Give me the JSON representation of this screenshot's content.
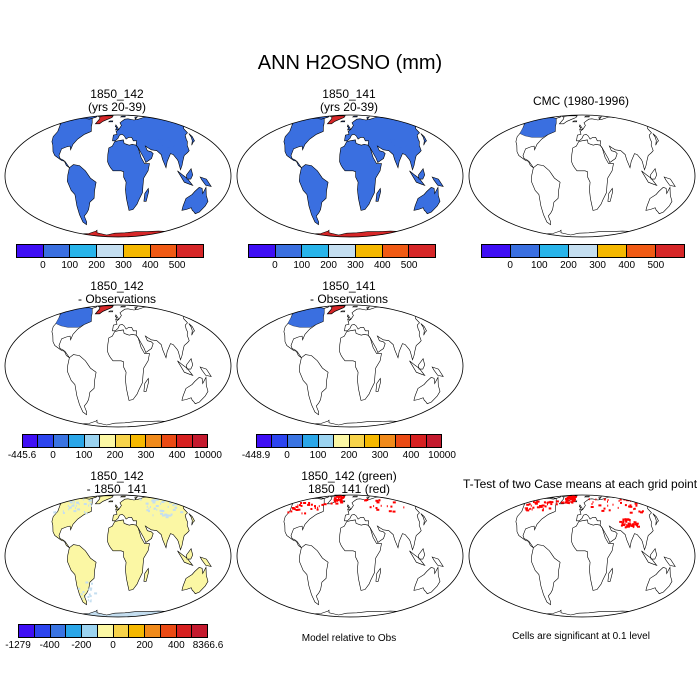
{
  "title": "ANN H2OSNO (mm)",
  "panels": [
    {
      "id": "p1",
      "title": [
        "1850_142",
        "(yrs 20-39)"
      ],
      "style": "full"
    },
    {
      "id": "p2",
      "title": [
        "1850_141",
        "(yrs 20-39)"
      ],
      "style": "full"
    },
    {
      "id": "p3",
      "title": [
        "CMC (1980-1996)"
      ],
      "style": "obs"
    },
    {
      "id": "p4",
      "title": [
        "1850_142",
        "- Observations"
      ],
      "style": "obs"
    },
    {
      "id": "p5",
      "title": [
        "1850_141",
        "- Observations"
      ],
      "style": "obs"
    },
    {
      "id": "p6",
      "title": [
        "1850_142",
        "- 1850_141"
      ],
      "style": "diff"
    },
    {
      "id": "p7",
      "title": [
        "1850_142 (green)",
        "1850_141 (red)"
      ],
      "style": "dots"
    },
    {
      "id": "p8",
      "title": [
        "T-Test of two Case means at each grid point"
      ],
      "style": "dots"
    }
  ],
  "colorbars": {
    "abs": {
      "colors": [
        "#3f0ff5",
        "#3a6fe0",
        "#28b4ea",
        "#c4def0",
        "#f5b800",
        "#f05a14",
        "#d62728"
      ],
      "ticks": [
        "0",
        "100",
        "200",
        "300",
        "400",
        "500"
      ]
    },
    "diff1": {
      "colors": [
        "#3f0ff5",
        "#2c44ef",
        "#3a74e2",
        "#2aa6e8",
        "#9bd3f0",
        "#fbf7a4",
        "#f7d34a",
        "#f5b800",
        "#f08a1a",
        "#ea4a14",
        "#d62020",
        "#c41a2e"
      ],
      "ticks": [
        "-445.6",
        "0",
        "100",
        "200",
        "300",
        "400",
        "10000"
      ]
    },
    "diff2": {
      "colors": [
        "#3f0ff5",
        "#2c44ef",
        "#3a74e2",
        "#2aa6e8",
        "#9bd3f0",
        "#fbf7a4",
        "#f7d34a",
        "#f5b800",
        "#f08a1a",
        "#ea4a14",
        "#d62020",
        "#c41a2e"
      ],
      "ticks": [
        "-448.9",
        "0",
        "100",
        "200",
        "300",
        "400",
        "10000"
      ]
    },
    "diff3": {
      "colors": [
        "#3f0ff5",
        "#2c44ef",
        "#3a74e2",
        "#2aa6e8",
        "#9bd3f0",
        "#fbf7a4",
        "#f7d34a",
        "#f5b800",
        "#f08a1a",
        "#ea4a14",
        "#d62020",
        "#c41a2e"
      ],
      "ticks": [
        "-1279",
        "-400",
        "-200",
        "0",
        "200",
        "400",
        "8366.6"
      ]
    }
  },
  "notes": {
    "model_obs": "Model relative to Obs",
    "significance": "Cells are significant at 0.1 level"
  },
  "colors": {
    "land_snow": "#3a6fe0",
    "high_snow": "#d62728",
    "diff_land": "#fbf7a4",
    "diff_blue": "#c4def0",
    "sig": "#ff0000"
  }
}
